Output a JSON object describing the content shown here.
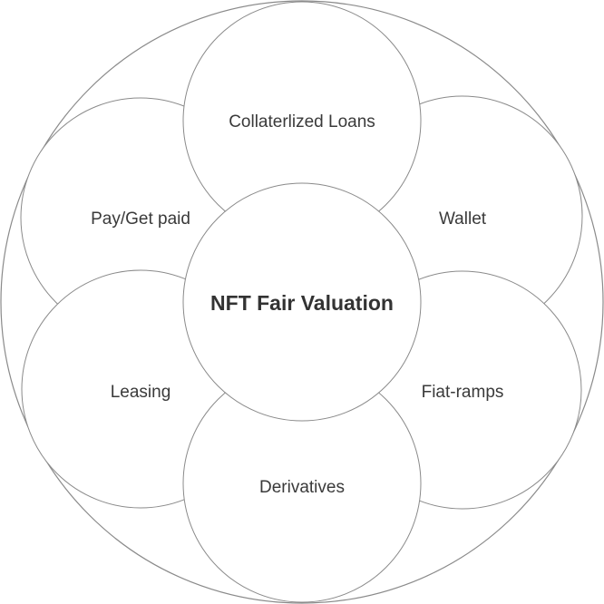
{
  "diagram": {
    "center_label": "NFT Fair Valuation",
    "satellites": [
      {
        "label": "Collaterlized Loans"
      },
      {
        "label": "Wallet"
      },
      {
        "label": "Fiat-ramps"
      },
      {
        "label": "Derivatives"
      },
      {
        "label": "Leasing"
      },
      {
        "label": "Pay/Get paid"
      }
    ],
    "colors": {
      "stroke": "#8a8a8a",
      "fill": "#ffffff",
      "text": "#3a3a3a",
      "center_text": "#333333"
    }
  }
}
